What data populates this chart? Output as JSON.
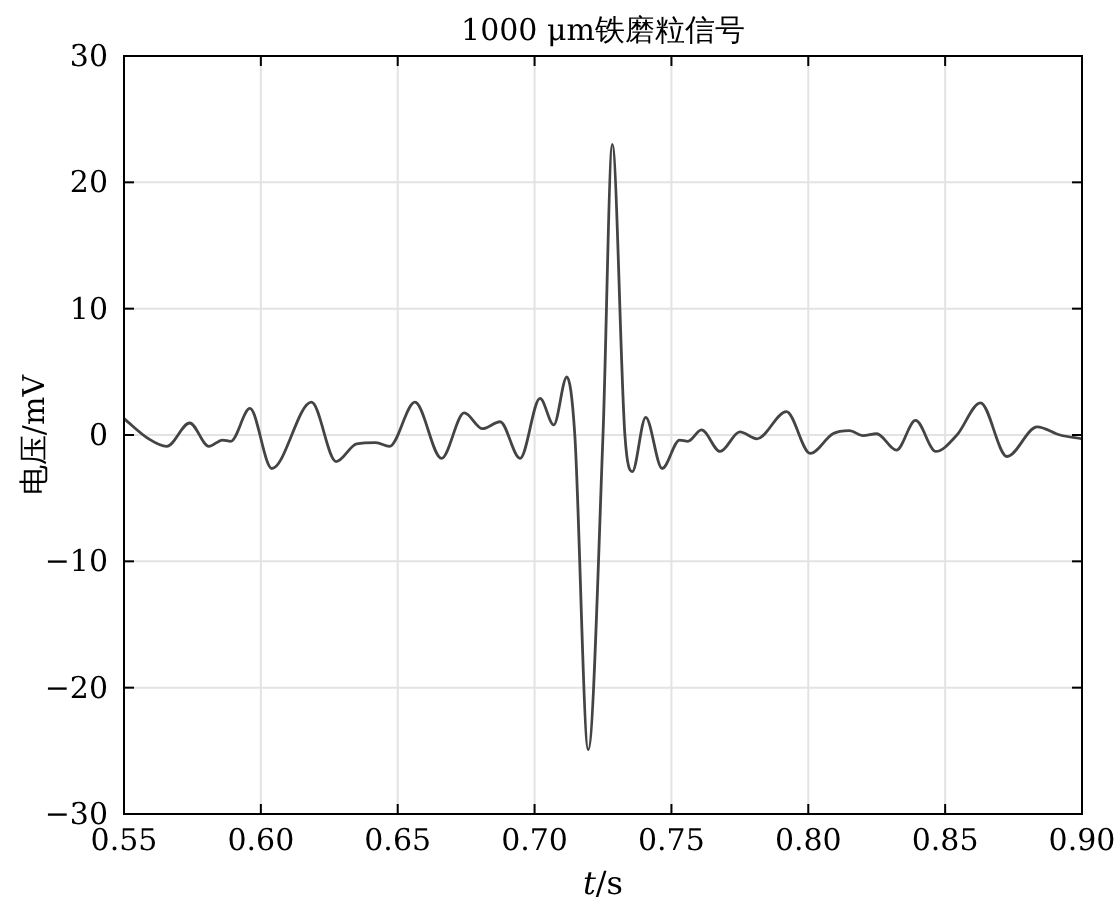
{
  "chart_data": {
    "type": "line",
    "title": "1000 μm铁磨粒信号",
    "xlabel": "*t*/s",
    "ylabel": "电压/mV",
    "x": [
      0.55,
      0.559,
      0.5656,
      0.574,
      0.581,
      0.586,
      0.589,
      0.596,
      0.604,
      0.6185,
      0.6275,
      0.635,
      0.642,
      0.647,
      0.6563,
      0.666,
      0.6743,
      0.681,
      0.6874,
      0.6947,
      0.702,
      0.707,
      0.7118,
      0.7147,
      0.7196,
      0.725,
      0.7284,
      0.733,
      0.7357,
      0.7406,
      0.7466,
      0.753,
      0.756,
      0.761,
      0.7678,
      0.775,
      0.7812,
      0.792,
      0.8007,
      0.809,
      0.815,
      0.82,
      0.825,
      0.8322,
      0.8392,
      0.8466,
      0.8543,
      0.8629,
      0.8726,
      0.8836,
      0.892,
      0.9
    ],
    "series": [
      {
        "color": "#444444",
        "values": [
          1.3,
          -0.3,
          -0.9,
          0.95,
          -0.9,
          -0.4,
          -0.5,
          2.1,
          -2.65,
          2.6,
          -2.1,
          -0.7,
          -0.6,
          -0.9,
          2.6,
          -1.85,
          1.75,
          0.5,
          1.05,
          -1.85,
          2.9,
          0.8,
          4.6,
          0,
          -24.9,
          0,
          23.0,
          0,
          -2.9,
          1.4,
          -2.65,
          -0.4,
          -0.5,
          0.4,
          -1.3,
          0.25,
          -0.3,
          1.85,
          -1.45,
          0.1,
          0.35,
          -0.05,
          0.1,
          -1.2,
          1.15,
          -1.3,
          0,
          2.55,
          -1.7,
          0.65,
          0,
          -0.3
        ]
      }
    ],
    "xlim": [
      0.55,
      0.9
    ],
    "ylim": [
      -30,
      30
    ],
    "xticks": [
      0.55,
      {
        "value": 0.6,
        "label": "0.60"
      },
      0.65,
      {
        "value": 0.7,
        "label": "0.70"
      },
      0.75,
      {
        "value": 0.8,
        "label": "0.80"
      },
      0.85,
      {
        "value": 0.9,
        "label": "0.90"
      }
    ],
    "yticks": [
      -30,
      -20,
      -10,
      0,
      10,
      20,
      30
    ],
    "grid": true
  }
}
